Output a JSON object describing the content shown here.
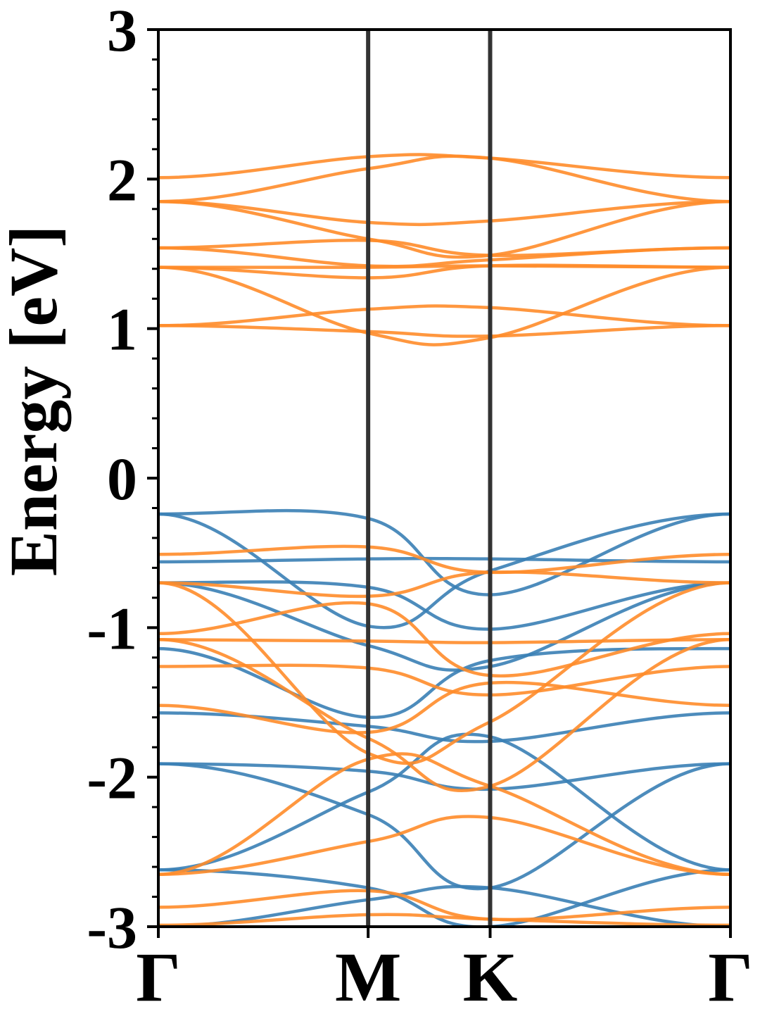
{
  "chart_data": {
    "type": "line",
    "title": "",
    "xlabel": "",
    "ylabel": "Energy [eV]",
    "ylim": [
      -3,
      3
    ],
    "yticks": [
      -3,
      -2,
      -1,
      0,
      1,
      2,
      3
    ],
    "ytick_labels": [
      "-3",
      "-2",
      "-1",
      "0",
      "1",
      "2",
      "3"
    ],
    "xticks": [
      0,
      1.72,
      2.72,
      4.69
    ],
    "xtick_labels": [
      "Γ",
      "M",
      "K",
      "Γ"
    ],
    "xlim": [
      0,
      4.69
    ],
    "grid": false,
    "legend": "none",
    "colors": {
      "valence": "#3a7fb5",
      "conduction": "#ff8c2a",
      "symmetry_lines": "#333333"
    },
    "series": [
      {
        "group": "conduction",
        "points": [
          [
            0,
            2.01
          ],
          [
            1.72,
            2.15
          ],
          [
            2.72,
            2.14
          ],
          [
            4.69,
            2.01
          ]
        ]
      },
      {
        "group": "conduction",
        "points": [
          [
            0,
            1.85
          ],
          [
            1.72,
            2.07
          ],
          [
            2.72,
            2.14
          ],
          [
            4.69,
            1.85
          ]
        ]
      },
      {
        "group": "conduction",
        "points": [
          [
            0,
            1.85
          ],
          [
            1.72,
            1.71
          ],
          [
            2.72,
            1.72
          ],
          [
            4.69,
            1.85
          ]
        ]
      },
      {
        "group": "conduction",
        "points": [
          [
            0,
            1.85
          ],
          [
            1.72,
            1.6
          ],
          [
            2.72,
            1.49
          ],
          [
            4.69,
            1.85
          ]
        ]
      },
      {
        "group": "conduction",
        "points": [
          [
            0,
            1.54
          ],
          [
            1.72,
            1.59
          ],
          [
            2.72,
            1.49
          ],
          [
            4.69,
            1.54
          ]
        ]
      },
      {
        "group": "conduction",
        "points": [
          [
            0,
            1.54
          ],
          [
            1.72,
            1.42
          ],
          [
            2.72,
            1.46
          ],
          [
            4.69,
            1.54
          ]
        ]
      },
      {
        "group": "conduction",
        "points": [
          [
            0,
            1.41
          ],
          [
            1.72,
            1.41
          ],
          [
            2.72,
            1.42
          ],
          [
            4.69,
            1.41
          ]
        ]
      },
      {
        "group": "conduction",
        "points": [
          [
            0,
            1.41
          ],
          [
            1.72,
            1.34
          ],
          [
            2.72,
            1.42
          ],
          [
            4.69,
            1.41
          ]
        ]
      },
      {
        "group": "conduction",
        "points": [
          [
            0,
            1.02
          ],
          [
            1.72,
            1.13
          ],
          [
            2.72,
            1.14
          ],
          [
            4.69,
            1.02
          ]
        ]
      },
      {
        "group": "conduction",
        "points": [
          [
            0,
            1.02
          ],
          [
            1.72,
            0.98
          ],
          [
            2.72,
            0.95
          ],
          [
            4.69,
            1.02
          ]
        ]
      },
      {
        "group": "conduction",
        "points": [
          [
            0,
            1.41
          ],
          [
            1.72,
            0.97
          ],
          [
            2.72,
            0.94
          ],
          [
            4.69,
            1.41
          ]
        ]
      },
      {
        "group": "valence",
        "points": [
          [
            0,
            -0.24
          ],
          [
            1.72,
            -0.27
          ],
          [
            2.72,
            -0.78
          ],
          [
            4.69,
            -0.24
          ]
        ]
      },
      {
        "group": "valence",
        "points": [
          [
            0,
            -0.56
          ],
          [
            1.72,
            -0.54
          ],
          [
            2.72,
            -0.54
          ],
          [
            4.69,
            -0.56
          ]
        ]
      },
      {
        "group": "valence",
        "points": [
          [
            0,
            -0.24
          ],
          [
            1.72,
            -0.99
          ],
          [
            2.72,
            -0.62
          ],
          [
            4.69,
            -0.24
          ]
        ]
      },
      {
        "group": "valence",
        "points": [
          [
            0,
            -0.7
          ],
          [
            1.72,
            -0.73
          ],
          [
            2.72,
            -1.01
          ],
          [
            4.69,
            -0.7
          ]
        ]
      },
      {
        "group": "valence",
        "points": [
          [
            0,
            -0.7
          ],
          [
            1.72,
            -1.12
          ],
          [
            2.72,
            -1.26
          ],
          [
            4.69,
            -0.7
          ]
        ]
      },
      {
        "group": "valence",
        "points": [
          [
            0,
            -1.14
          ],
          [
            1.72,
            -1.6
          ],
          [
            2.72,
            -1.22
          ],
          [
            4.69,
            -1.14
          ]
        ]
      },
      {
        "group": "valence",
        "points": [
          [
            0,
            -1.57
          ],
          [
            1.72,
            -1.66
          ],
          [
            2.72,
            -1.76
          ],
          [
            4.69,
            -1.57
          ]
        ]
      },
      {
        "group": "valence",
        "points": [
          [
            0,
            -1.91
          ],
          [
            1.72,
            -1.96
          ],
          [
            2.72,
            -2.08
          ],
          [
            4.69,
            -1.91
          ]
        ]
      },
      {
        "group": "valence",
        "points": [
          [
            0,
            -1.91
          ],
          [
            1.72,
            -2.25
          ],
          [
            2.72,
            -2.74
          ],
          [
            4.69,
            -1.91
          ]
        ]
      },
      {
        "group": "valence",
        "points": [
          [
            0,
            -2.62
          ],
          [
            1.72,
            -2.1
          ],
          [
            2.72,
            -1.73
          ],
          [
            4.69,
            -2.62
          ]
        ]
      },
      {
        "group": "valence",
        "points": [
          [
            0,
            -2.62
          ],
          [
            1.72,
            -2.74
          ],
          [
            2.72,
            -3.0
          ],
          [
            4.69,
            -2.62
          ]
        ]
      },
      {
        "group": "valence",
        "points": [
          [
            0,
            -3.0
          ],
          [
            1.72,
            -2.82
          ],
          [
            2.72,
            -2.74
          ],
          [
            4.69,
            -3.0
          ]
        ]
      },
      {
        "group": "conduction",
        "points": [
          [
            0,
            -0.51
          ],
          [
            1.72,
            -0.46
          ],
          [
            2.72,
            -0.63
          ],
          [
            4.69,
            -0.51
          ]
        ]
      },
      {
        "group": "conduction",
        "points": [
          [
            0,
            -0.7
          ],
          [
            1.72,
            -0.79
          ],
          [
            2.72,
            -0.63
          ],
          [
            4.69,
            -0.7
          ]
        ]
      },
      {
        "group": "conduction",
        "points": [
          [
            0,
            -1.04
          ],
          [
            1.72,
            -0.84
          ],
          [
            2.72,
            -1.32
          ],
          [
            4.69,
            -1.04
          ]
        ]
      },
      {
        "group": "conduction",
        "points": [
          [
            0,
            -1.08
          ],
          [
            1.72,
            -1.09
          ],
          [
            2.72,
            -1.1
          ],
          [
            4.69,
            -1.08
          ]
        ]
      },
      {
        "group": "conduction",
        "points": [
          [
            0,
            -1.26
          ],
          [
            1.72,
            -1.27
          ],
          [
            2.72,
            -1.45
          ],
          [
            4.69,
            -1.26
          ]
        ]
      },
      {
        "group": "conduction",
        "points": [
          [
            0,
            -1.52
          ],
          [
            1.72,
            -1.7
          ],
          [
            2.72,
            -1.37
          ],
          [
            4.69,
            -1.52
          ]
        ]
      },
      {
        "group": "conduction",
        "points": [
          [
            0,
            -1.08
          ],
          [
            1.72,
            -1.74
          ],
          [
            2.72,
            -2.06
          ],
          [
            4.69,
            -1.08
          ]
        ]
      },
      {
        "group": "conduction",
        "points": [
          [
            0,
            -0.7
          ],
          [
            1.72,
            -1.84
          ],
          [
            2.72,
            -1.63
          ],
          [
            4.69,
            -0.7
          ]
        ]
      },
      {
        "group": "conduction",
        "points": [
          [
            0,
            -2.65
          ],
          [
            1.72,
            -1.88
          ],
          [
            2.72,
            -2.06
          ],
          [
            4.69,
            -2.65
          ]
        ]
      },
      {
        "group": "conduction",
        "points": [
          [
            0,
            -2.65
          ],
          [
            1.72,
            -2.43
          ],
          [
            2.72,
            -2.27
          ],
          [
            4.69,
            -2.65
          ]
        ]
      },
      {
        "group": "conduction",
        "points": [
          [
            0,
            -2.87
          ],
          [
            1.72,
            -2.76
          ],
          [
            2.72,
            -2.95
          ],
          [
            4.69,
            -2.87
          ]
        ]
      },
      {
        "group": "conduction",
        "points": [
          [
            0,
            -2.99
          ],
          [
            1.72,
            -2.92
          ],
          [
            2.72,
            -2.95
          ],
          [
            4.69,
            -2.99
          ]
        ]
      }
    ]
  }
}
